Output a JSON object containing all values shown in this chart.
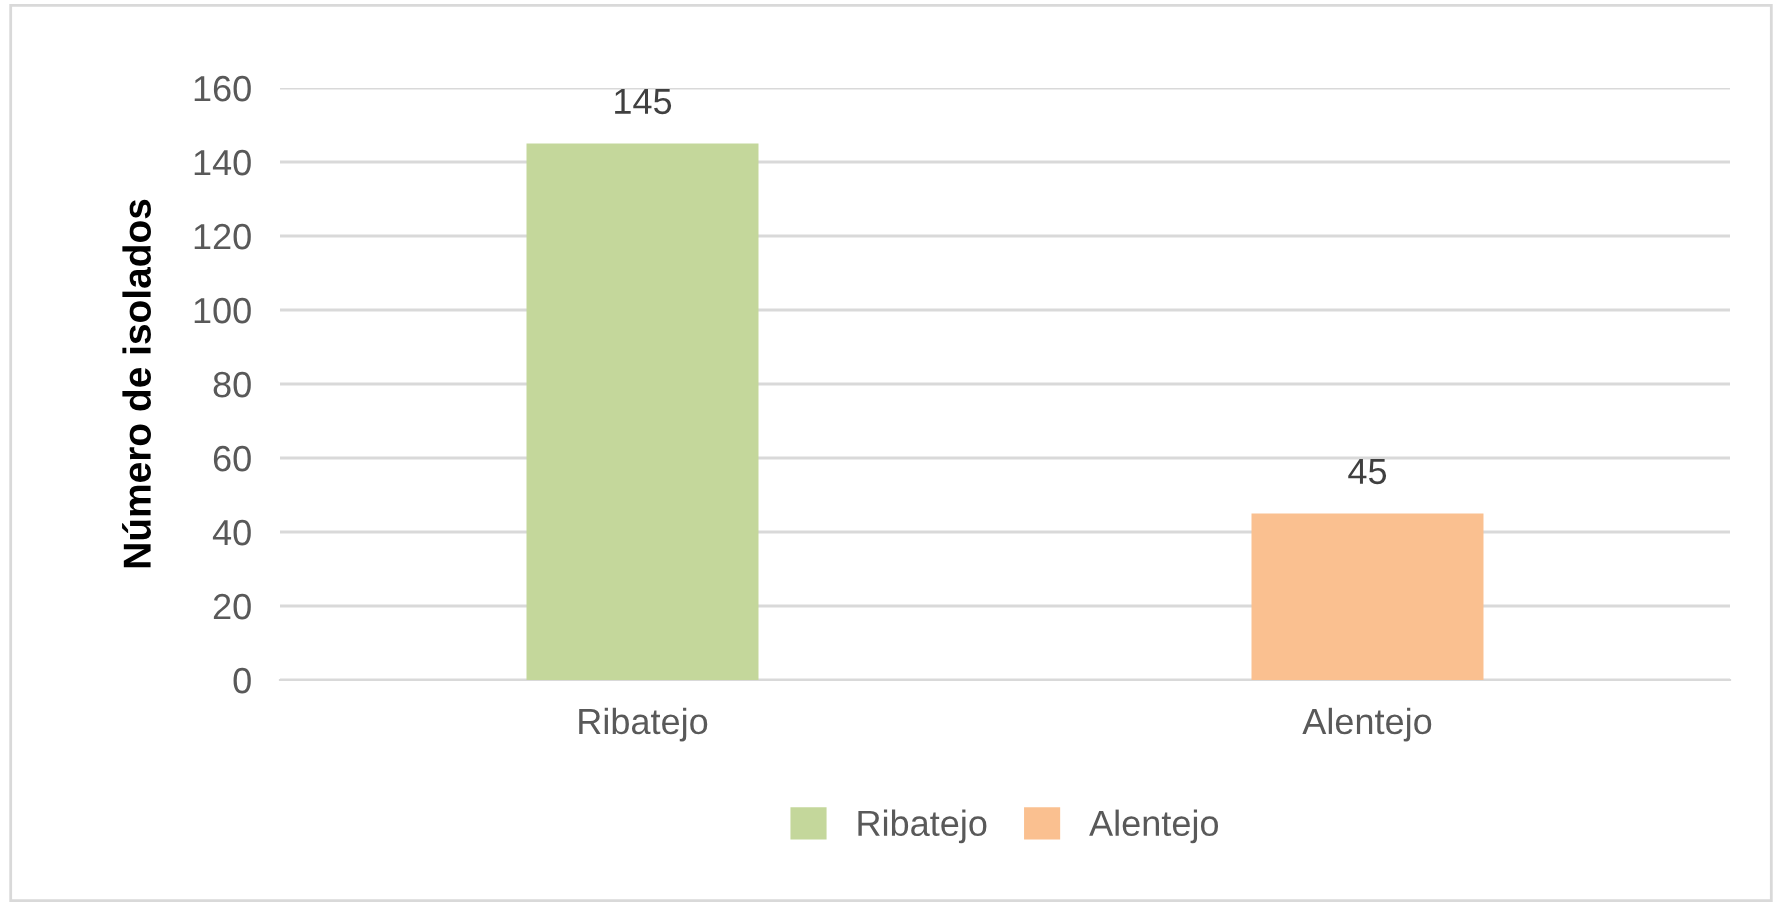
{
  "chart_data": {
    "type": "bar",
    "ylabel": "Número de isolados",
    "categories": [
      "Ribatejo",
      "Alentejo"
    ],
    "series": [
      {
        "name": "Ribatejo",
        "color": "#c4d79b",
        "values": [
          145,
          null
        ]
      },
      {
        "name": "Alentejo",
        "color": "#fac090",
        "values": [
          null,
          45
        ]
      }
    ],
    "ylim": [
      0,
      160
    ],
    "yticks": [
      0,
      20,
      40,
      60,
      80,
      100,
      120,
      140,
      160
    ],
    "grid": "y",
    "data_labels": true,
    "legend": "bottom"
  }
}
